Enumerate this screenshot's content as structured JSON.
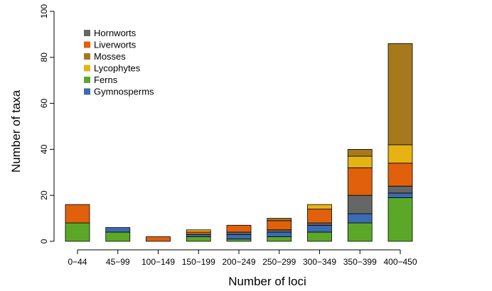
{
  "chart_data": {
    "type": "bar",
    "stacked": true,
    "xlabel": "Number of loci",
    "ylabel": "Number of taxa",
    "ylim": [
      0,
      100
    ],
    "yticks": [
      0,
      20,
      40,
      60,
      80,
      100
    ],
    "categories": [
      "0−44",
      "45−99",
      "100−149",
      "150−199",
      "200−249",
      "250−299",
      "300−349",
      "350−399",
      "400−450"
    ],
    "legend_position": "top-left",
    "series": [
      {
        "name": "Ferns",
        "color": "#5ba829",
        "values": [
          8,
          4,
          0,
          2,
          1,
          2,
          4,
          8,
          19
        ]
      },
      {
        "name": "Gymnosperms",
        "color": "#3b6bb3",
        "values": [
          0,
          2,
          0,
          1,
          2,
          2,
          3,
          4,
          2
        ]
      },
      {
        "name": "Hornworts",
        "color": "#666666",
        "values": [
          0,
          0,
          0,
          0,
          1,
          1,
          1,
          8,
          3
        ]
      },
      {
        "name": "Liverworts",
        "color": "#e0600c",
        "values": [
          8,
          0,
          2,
          1,
          3,
          4,
          6,
          12,
          10
        ]
      },
      {
        "name": "Lycophytes",
        "color": "#e5b412",
        "values": [
          0,
          0,
          0,
          1,
          0,
          0,
          2,
          5,
          8
        ]
      },
      {
        "name": "Mosses",
        "color": "#a67a1c",
        "values": [
          0,
          0,
          0,
          0,
          0,
          1,
          0,
          3,
          44
        ]
      }
    ],
    "legend_order": [
      "Hornworts",
      "Liverworts",
      "Mosses",
      "Lycophytes",
      "Ferns",
      "Gymnosperms"
    ]
  }
}
